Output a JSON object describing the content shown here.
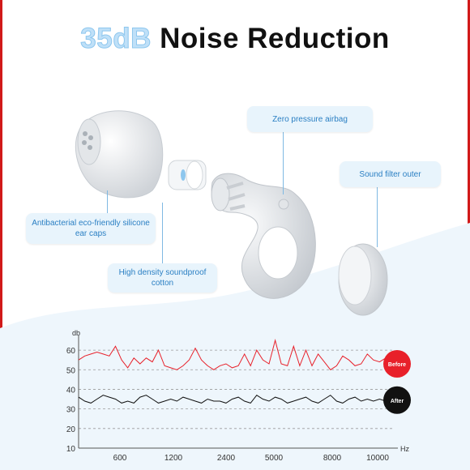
{
  "title": {
    "accent": "35dB",
    "main": "Noise Reduction"
  },
  "callouts": {
    "airbag": "Zero pressure airbag",
    "filter": "Sound filter outer",
    "caps": "Antibacterial eco-friendly silicone ear caps",
    "cotton": "High density soundproof cotton"
  },
  "colors": {
    "before": "#e8202a",
    "after": "#111111",
    "accent": "#bfe0f8",
    "callout_text": "#2a7fc3"
  },
  "chart_data": {
    "type": "line",
    "ylabel": "db",
    "xlabel": "Hz",
    "y_ticks": [
      10,
      20,
      30,
      40,
      50,
      60
    ],
    "x_ticks": [
      "600",
      "1200",
      "2400",
      "5000",
      "8000",
      "10000"
    ],
    "ylim": [
      10,
      65
    ],
    "grid": "dashed horizontal",
    "legend": "right",
    "series": [
      {
        "name": "Before",
        "color": "#e8202a",
        "values": [
          55,
          57,
          58,
          59,
          58,
          57,
          62,
          55,
          51,
          56,
          53,
          56,
          54,
          60,
          52,
          51,
          50,
          52,
          55,
          61,
          55,
          52,
          50,
          52,
          53,
          51,
          52,
          58,
          52,
          60,
          55,
          53,
          65,
          53,
          52,
          62,
          52,
          60,
          52,
          58,
          54,
          50,
          52,
          57,
          55,
          52,
          53,
          58,
          55,
          54,
          56
        ]
      },
      {
        "name": "After",
        "color": "#111111",
        "values": [
          36,
          34,
          33,
          35,
          37,
          36,
          35,
          33,
          34,
          33,
          36,
          37,
          35,
          33,
          34,
          35,
          34,
          36,
          35,
          34,
          33,
          35,
          34,
          34,
          33,
          35,
          36,
          34,
          33,
          37,
          35,
          34,
          36,
          35,
          33,
          34,
          35,
          36,
          34,
          33,
          35,
          37,
          34,
          33,
          35,
          36,
          34,
          35,
          34,
          35,
          34
        ]
      }
    ]
  }
}
